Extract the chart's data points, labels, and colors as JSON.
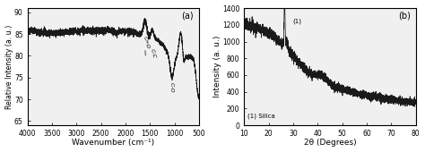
{
  "panel_a": {
    "label": "(a)",
    "xlabel": "Wavenumber (cm⁻¹)",
    "ylabel": "Relative Intensity (a. u.)",
    "xlim": [
      4000,
      500
    ],
    "ylim": [
      64,
      91
    ],
    "yticks": [
      65,
      70,
      75,
      80,
      85,
      90
    ],
    "xticks": [
      4000,
      3500,
      3000,
      2500,
      2000,
      1500,
      1000,
      500
    ]
  },
  "panel_b": {
    "label": "(b)",
    "xlabel": "2θ (Degrees)",
    "ylabel": "Intensity (a. u.)",
    "xlim": [
      10,
      80
    ],
    "ylim": [
      0,
      1400
    ],
    "yticks": [
      0,
      200,
      400,
      600,
      800,
      1000,
      1200,
      1400
    ],
    "xticks": [
      10,
      20,
      30,
      40,
      50,
      60,
      70,
      80
    ]
  },
  "line_color": "#1a1a1a",
  "background_color": "#ffffff",
  "panel_bg": "#f0f0f0",
  "tick_labelsize": 5.5,
  "label_fontsize": 6.5,
  "axis_label_fontsize": 6.5
}
